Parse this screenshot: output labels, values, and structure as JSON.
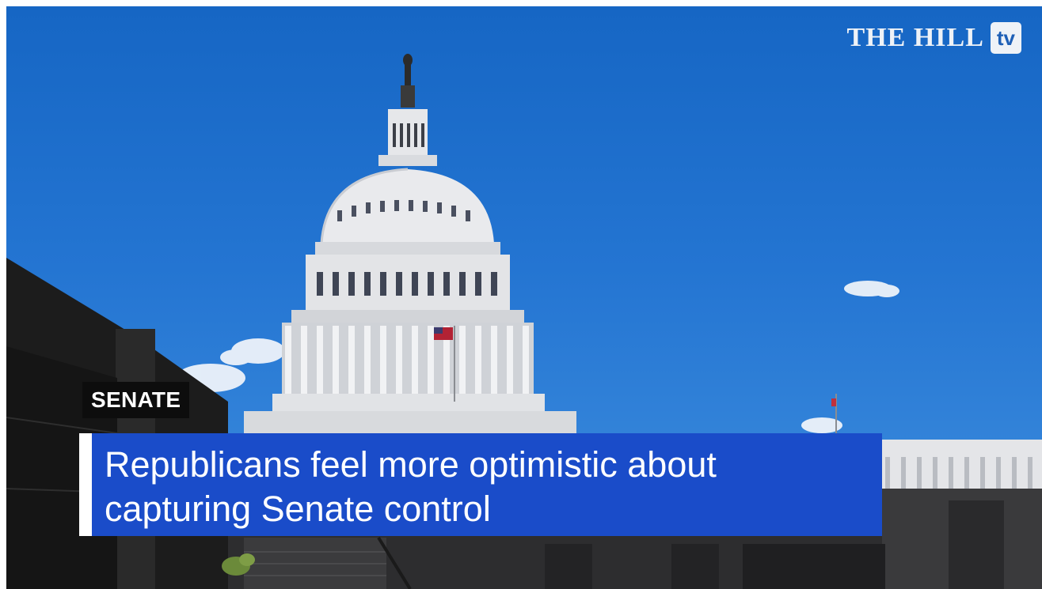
{
  "brand": {
    "name": "THE HILL",
    "badge": "tv"
  },
  "category": "SENATE",
  "headline": "Republicans feel more optimistic about capturing Senate control",
  "colors": {
    "sky": "#1f6fcc",
    "banner": "#1a4cc9",
    "tag_bg": "#0d0d0d",
    "accent_bar": "#ffffff"
  }
}
